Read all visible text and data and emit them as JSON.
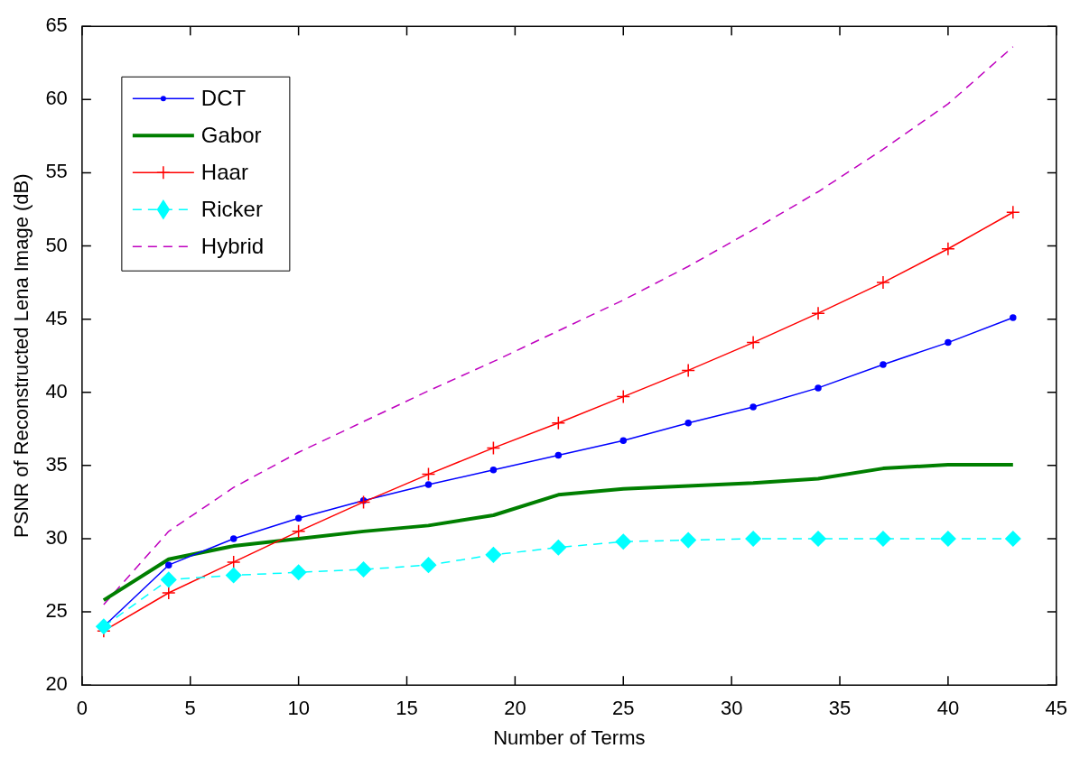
{
  "chart_data": {
    "type": "line",
    "xlabel": "Number of Terms",
    "ylabel": "PSNR of Reconstructed Lena Image (dB)",
    "x": [
      1,
      4,
      7,
      10,
      13,
      16,
      19,
      22,
      25,
      28,
      31,
      34,
      37,
      40,
      43
    ],
    "series": [
      {
        "name": "DCT",
        "color": "#0000ff",
        "marker": "circle",
        "line_style": "solid",
        "values": [
          24,
          28.2,
          30,
          31.4,
          32.6,
          33.7,
          34.7,
          35.7,
          36.7,
          37.9,
          39,
          40.3,
          41.9,
          43.4,
          45.1
        ]
      },
      {
        "name": "Gabor",
        "color": "#007f00",
        "marker": "none",
        "line_style": "solid",
        "values": [
          25.8,
          28.6,
          29.5,
          30,
          30.5,
          30.9,
          31.6,
          33,
          33.4,
          33.6,
          33.8,
          34.1,
          34.8,
          35.05,
          35.05
        ]
      },
      {
        "name": "Haar",
        "color": "#ff0000",
        "marker": "cross",
        "line_style": "solid",
        "values": [
          23.7,
          26.3,
          28.4,
          30.5,
          32.5,
          34.4,
          36.2,
          37.9,
          39.7,
          41.5,
          43.4,
          45.4,
          47.5,
          49.8,
          52.3
        ]
      },
      {
        "name": "Ricker",
        "color": "#00ffff",
        "marker": "diamond",
        "line_style": "dashed",
        "values": [
          24,
          27.2,
          27.5,
          27.7,
          27.9,
          28.2,
          28.9,
          29.4,
          29.8,
          29.9,
          30,
          30,
          30,
          30,
          30
        ]
      },
      {
        "name": "Hybrid",
        "color": "#bf00bf",
        "marker": "none",
        "line_style": "dashed",
        "values": [
          25.5,
          30.5,
          33.5,
          35.9,
          38,
          40.1,
          42.1,
          44.2,
          46.3,
          48.6,
          51.1,
          53.7,
          56.6,
          59.7,
          63.6
        ]
      }
    ],
    "xlim": [
      0,
      45
    ],
    "xticks": [
      0,
      5,
      10,
      15,
      20,
      25,
      30,
      35,
      40,
      45
    ],
    "ylim": [
      20,
      65
    ],
    "yticks": [
      20,
      25,
      30,
      35,
      40,
      45,
      50,
      55,
      60,
      65
    ],
    "grid": false,
    "legend": "top left"
  }
}
